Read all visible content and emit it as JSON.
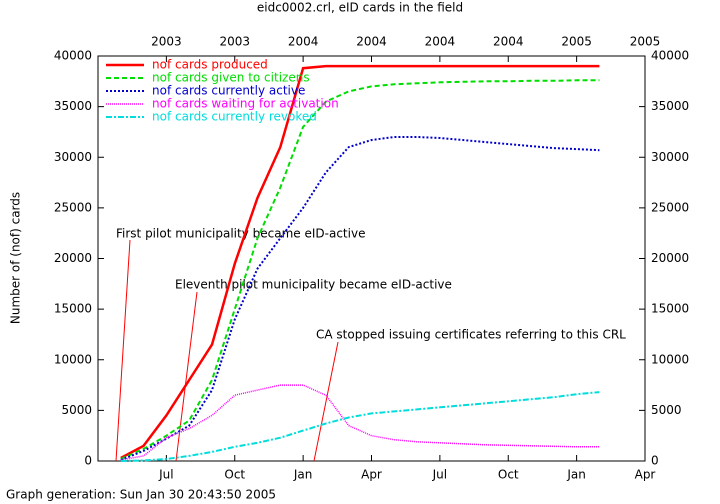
{
  "chart_data": {
    "type": "line",
    "title": "eidc0002.crl, eID cards in the field",
    "ylabel": "Number of (nof) cards",
    "footer": "Graph generation: Sun Jan 30 20:43:50 2005",
    "x": [
      "2003-05",
      "2003-06",
      "2003-07",
      "2003-08",
      "2003-09",
      "2003-10",
      "2003-11",
      "2003-12",
      "2004-01",
      "2004-02",
      "2004-03",
      "2004-04",
      "2004-05",
      "2004-06",
      "2004-07",
      "2004-08",
      "2004-09",
      "2004-10",
      "2004-11",
      "2004-12",
      "2005-01",
      "2005-02"
    ],
    "xlim": [
      "2003-04",
      "2005-04"
    ],
    "xticks": [
      {
        "value": "2003-07",
        "label": "Jul"
      },
      {
        "value": "2003-10",
        "label": "Oct"
      },
      {
        "value": "2004-01",
        "label": "Jan"
      },
      {
        "value": "2004-04",
        "label": "Apr"
      },
      {
        "value": "2004-07",
        "label": "Jul"
      },
      {
        "value": "2004-10",
        "label": "Oct"
      },
      {
        "value": "2005-01",
        "label": "Jan"
      },
      {
        "value": "2005-04",
        "label": "Apr"
      }
    ],
    "x2ticks": [
      {
        "value": "2003-07",
        "label": "2003"
      },
      {
        "value": "2003-10",
        "label": "2003"
      },
      {
        "value": "2004-01",
        "label": "2004"
      },
      {
        "value": "2004-04",
        "label": "2004"
      },
      {
        "value": "2004-07",
        "label": "2004"
      },
      {
        "value": "2004-10",
        "label": "2004"
      },
      {
        "value": "2005-01",
        "label": "2005"
      },
      {
        "value": "2005-04",
        "label": "2005"
      }
    ],
    "ylim": [
      0,
      40000
    ],
    "yticks": [
      0,
      5000,
      10000,
      15000,
      20000,
      25000,
      30000,
      35000,
      40000
    ],
    "y2lim": [
      0,
      40000
    ],
    "y2ticks": [
      0,
      5000,
      10000,
      15000,
      20000,
      25000,
      30000,
      35000,
      40000
    ],
    "legend": "upper left",
    "series": [
      {
        "name": "nof cards produced",
        "color": "#ff0000",
        "width": 2.5,
        "dash": "none",
        "values": [
          300,
          1500,
          4500,
          8000,
          11500,
          19500,
          26000,
          31000,
          38800,
          39000,
          39000,
          39000,
          39000,
          39000,
          39000,
          39000,
          39000,
          39000,
          39000,
          39000,
          39000,
          39000
        ]
      },
      {
        "name": "nof cards given to citizens",
        "color": "#00dd00",
        "width": 2,
        "dash": "5,3",
        "values": [
          200,
          1200,
          2500,
          4000,
          8000,
          15000,
          22000,
          27000,
          33000,
          35500,
          36500,
          37000,
          37200,
          37300,
          37400,
          37450,
          37500,
          37500,
          37550,
          37550,
          37600,
          37600
        ]
      },
      {
        "name": "nof cards currently active",
        "color": "#0000cc",
        "width": 2,
        "dash": "2,2",
        "values": [
          100,
          1000,
          2200,
          3500,
          7000,
          14000,
          19000,
          22000,
          25000,
          28500,
          31000,
          31700,
          32000,
          32000,
          31900,
          31700,
          31500,
          31300,
          31100,
          30900,
          30800,
          30700
        ]
      },
      {
        "name": "nof cards waiting for activation",
        "color": "#ff00ff",
        "width": 1.5,
        "dash": "1,1",
        "values": [
          100,
          500,
          2300,
          3200,
          4500,
          6500,
          7000,
          7500,
          7500,
          6500,
          3500,
          2500,
          2100,
          1900,
          1800,
          1700,
          1600,
          1550,
          1500,
          1450,
          1400,
          1400
        ]
      },
      {
        "name": "nof cards currently revoked",
        "color": "#00dddd",
        "width": 2,
        "dash": "6,2,2,2",
        "values": [
          0,
          50,
          200,
          500,
          900,
          1400,
          1800,
          2300,
          3000,
          3700,
          4300,
          4700,
          4900,
          5100,
          5300,
          5500,
          5700,
          5900,
          6100,
          6300,
          6600,
          6800
        ]
      }
    ],
    "annotations": [
      "First pilot municipality became eID-active",
      "Eleventh pilot municipality became eID-active",
      "CA stopped issuing certificates referring to this CRL"
    ]
  }
}
